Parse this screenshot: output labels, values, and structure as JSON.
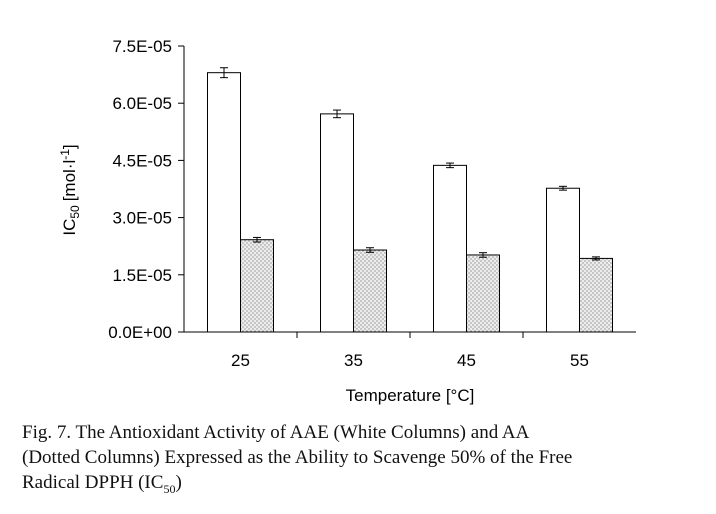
{
  "chart_data": {
    "type": "bar",
    "xlabel": "Temperature [°C]",
    "ylabel_main": "IC",
    "ylabel_sub": "50",
    "ylabel_unit": "[mol·l",
    "ylabel_exp": "-1",
    "ylabel_end": "]",
    "categories": [
      "25",
      "35",
      "45",
      "55"
    ],
    "ylim": [
      0,
      7.5e-05
    ],
    "yticks": [
      {
        "value": 0,
        "label": "0.0E+00"
      },
      {
        "value": 1.5e-05,
        "label": "1.5E-05"
      },
      {
        "value": 3e-05,
        "label": "3.0E-05"
      },
      {
        "value": 4.5e-05,
        "label": "4.5E-05"
      },
      {
        "value": 6e-05,
        "label": "6.0E-05"
      },
      {
        "value": 7.5e-05,
        "label": "7.5E-05"
      }
    ],
    "series": [
      {
        "values": [
          6.8e-05,
          5.72e-05,
          4.37e-05,
          3.77e-05
        ],
        "errors": [
          1.3e-06,
          1e-06,
          6e-07,
          5e-07
        ],
        "fill": "#ffffff"
      },
      {
        "values": [
          2.42e-05,
          2.15e-05,
          2.02e-05,
          1.93e-05
        ],
        "errors": [
          6e-07,
          6e-07,
          6e-07,
          4e-07
        ],
        "fill": "dotted"
      }
    ],
    "grid": false,
    "legend": "none"
  },
  "caption": {
    "line1": "Fig. 7.  The Antioxidant Activity of AAE (White Columns) and AA",
    "line2": "(Dotted Columns) Expressed as the Ability to Scavenge 50% of the Free",
    "line3_pre": "Radical DPPH (IC",
    "line3_sub": "50",
    "line3_post": ")"
  }
}
